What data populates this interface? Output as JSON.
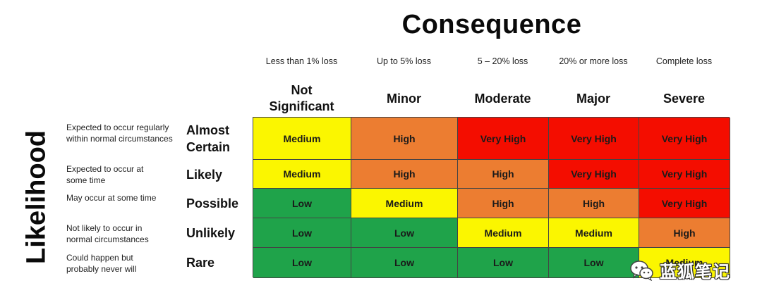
{
  "title": "Consequence",
  "yaxis_label": "Likelihood",
  "consequences": [
    {
      "loss": "Less than 1% loss",
      "name": "Not\nSignificant"
    },
    {
      "loss": "Up to 5% loss",
      "name": "Minor"
    },
    {
      "loss": "5 – 20% loss",
      "name": "Moderate"
    },
    {
      "loss": "20% or more loss",
      "name": "Major"
    },
    {
      "loss": "Complete loss",
      "name": "Severe"
    }
  ],
  "likelihoods": [
    {
      "desc": "Expected to occur regularly within normal circumstances",
      "name": "Almost Certain"
    },
    {
      "desc": "Expected to occur at some time",
      "name": "Likely"
    },
    {
      "desc": "May occur at some time",
      "name": "Possible"
    },
    {
      "desc": "Not likely to occur in normal circumstances",
      "name": "Unlikely"
    },
    {
      "desc": "Could happen but probably never will",
      "name": "Rare"
    }
  ],
  "matrix": [
    [
      "Medium",
      "High",
      "Very High",
      "Very High",
      "Very High"
    ],
    [
      "Medium",
      "High",
      "High",
      "Very High",
      "Very High"
    ],
    [
      "Low",
      "Medium",
      "High",
      "High",
      "Very High"
    ],
    [
      "Low",
      "Low",
      "Medium",
      "Medium",
      "High"
    ],
    [
      "Low",
      "Low",
      "Low",
      "Low",
      "Medium"
    ]
  ],
  "colors": {
    "Low": "#1fa34a",
    "Medium": "#fbf600",
    "High": "#ec7d31",
    "Very High": "#f40d00"
  },
  "watermark": {
    "icon": "wechat-icon",
    "text": "蓝狐笔记"
  }
}
